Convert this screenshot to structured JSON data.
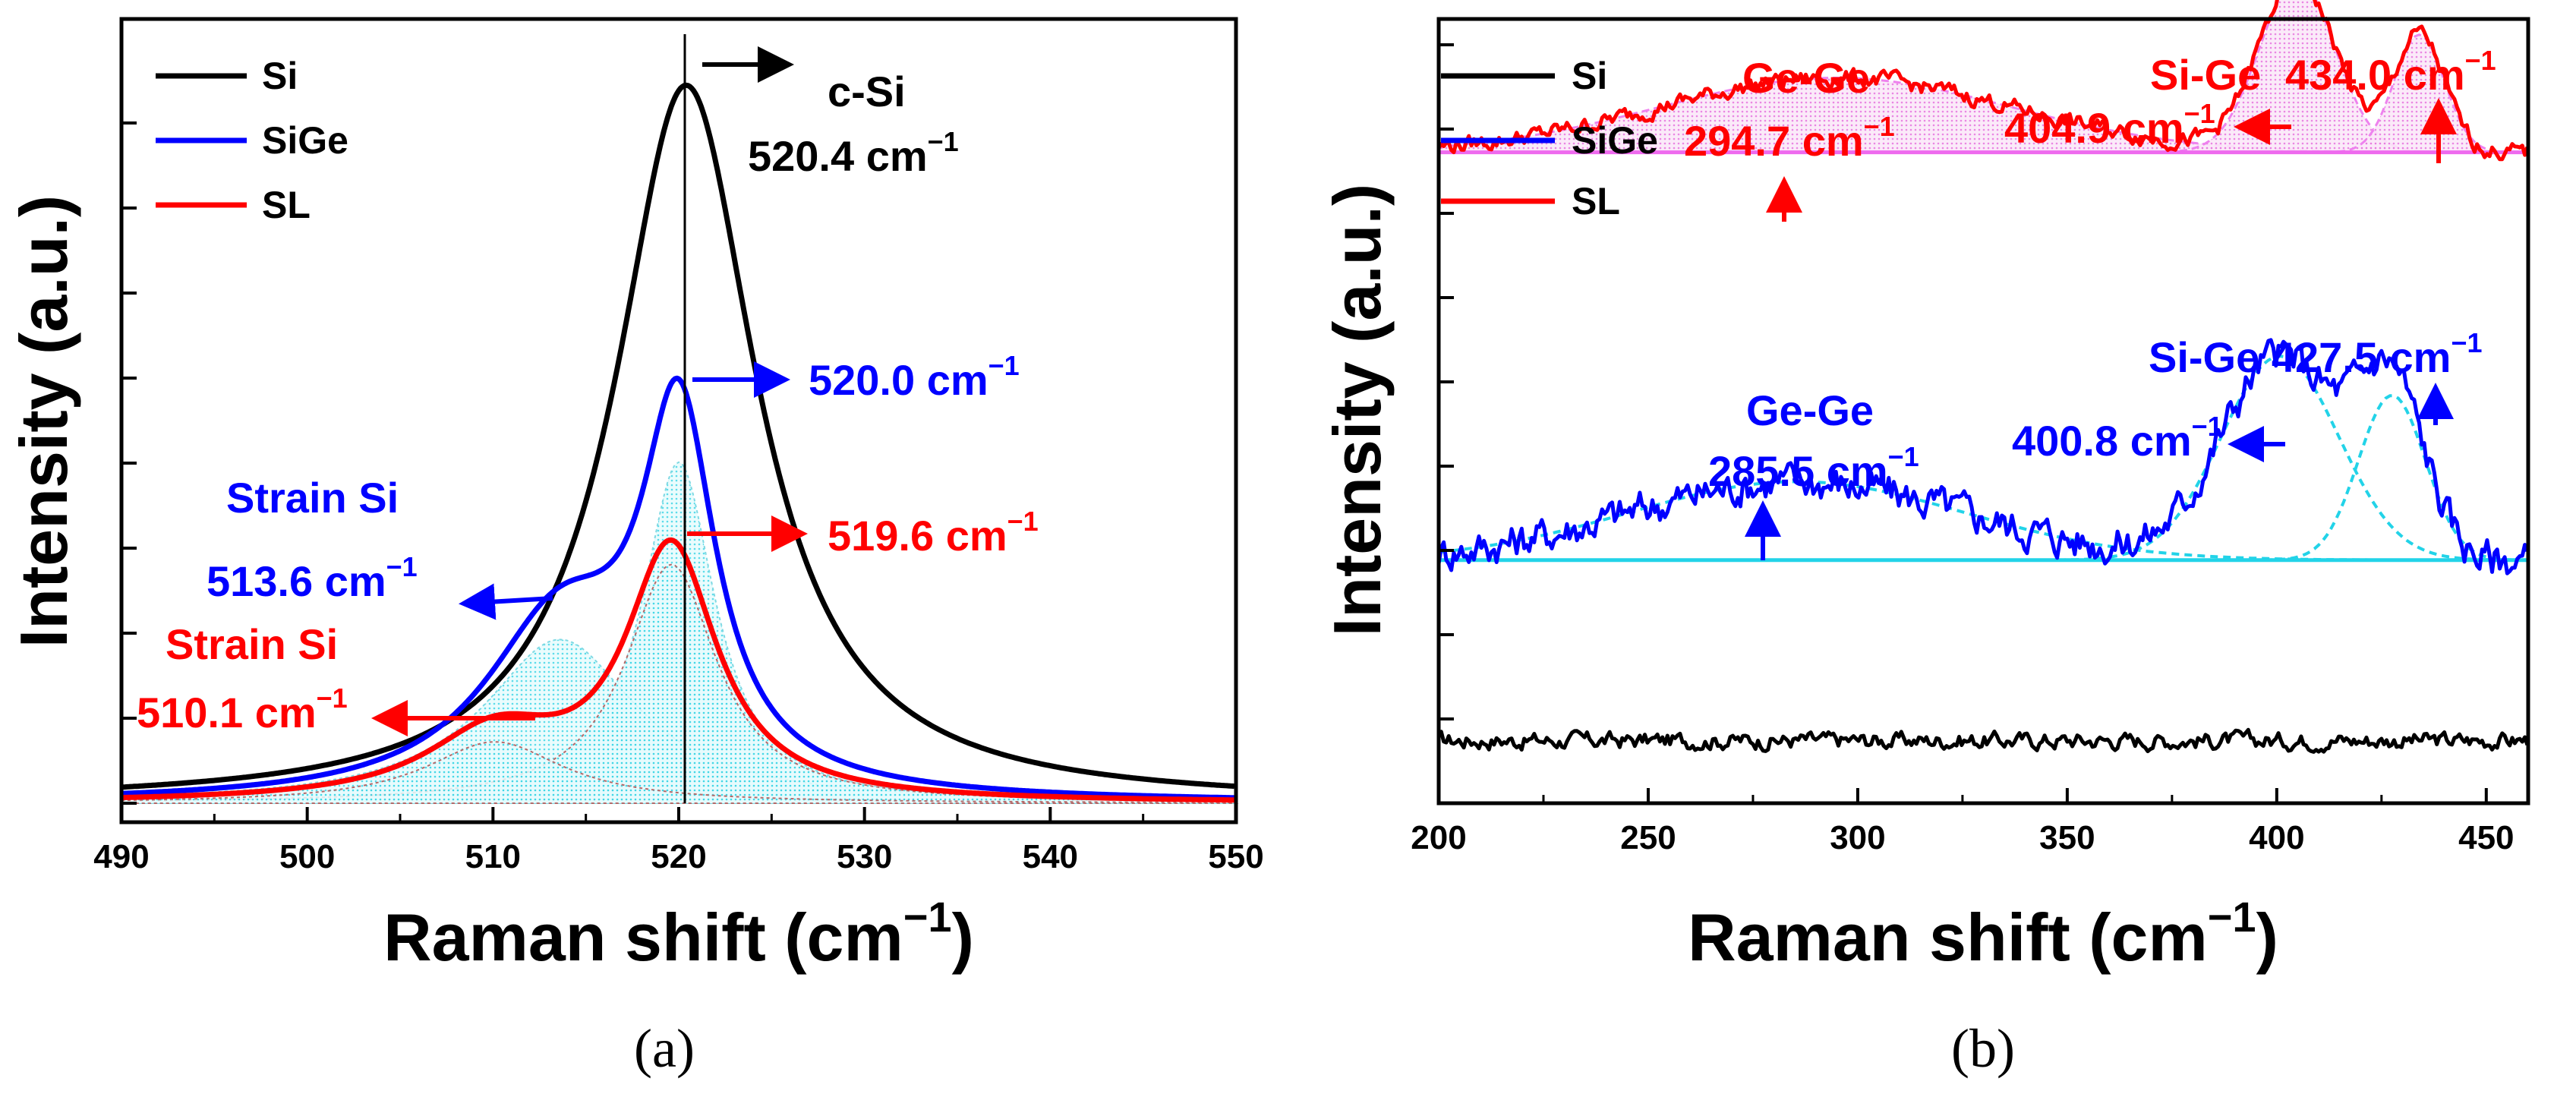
{
  "chart_data": [
    {
      "panel": "(a)",
      "type": "line",
      "xlabel": "Raman shift (cm",
      "xlabel_sup": "−1",
      "xlabel_close": ")",
      "ylabel": "Intensity (a.u.)",
      "xlim": [
        490,
        550
      ],
      "ylim": [
        0,
        1.05
      ],
      "xticks": [
        490,
        500,
        510,
        520,
        530,
        540,
        550
      ],
      "legend": [
        {
          "label": "Si",
          "color": "#000000"
        },
        {
          "label": "SiGe",
          "color": "#0000ff"
        },
        {
          "label": "SL",
          "color": "#ff0000"
        }
      ],
      "series": [
        {
          "name": "Si",
          "color": "#000000",
          "type": "lorentz",
          "peaks": [
            {
              "center": 520.4,
              "height": 1.0,
              "width": 4.6
            }
          ],
          "baseline": 0.0
        },
        {
          "name": "SiGe",
          "color": "#0000ff",
          "type": "lorentz",
          "peaks": [
            {
              "center": 520.0,
              "height": 0.5,
              "width": 2.4
            },
            {
              "center": 513.6,
              "height": 0.24,
              "width": 5.0
            }
          ],
          "baseline": 0.0
        },
        {
          "name": "SL",
          "color": "#ff0000",
          "type": "lorentz",
          "peaks": [
            {
              "center": 519.6,
              "height": 0.35,
              "width": 3.0
            },
            {
              "center": 510.1,
              "height": 0.09,
              "width": 4.5
            }
          ],
          "baseline": 0.0
        }
      ],
      "annotations": [
        {
          "text": "c-Si",
          "color": "#000000"
        },
        {
          "text": "520.4 cm",
          "sup": "−1",
          "color": "#000000"
        },
        {
          "text": "520.0 cm",
          "sup": "−1",
          "color": "#0000ff"
        },
        {
          "text": "Strain Si",
          "color": "#0000ff"
        },
        {
          "text": "513.6 cm",
          "sup": "−1",
          "color": "#0000ff"
        },
        {
          "text": "519.6 cm",
          "sup": "−1",
          "color": "#ff0000"
        },
        {
          "text": "Strain Si",
          "color": "#ff0000"
        },
        {
          "text": "510.1 cm",
          "sup": "−1",
          "color": "#ff0000"
        }
      ]
    },
    {
      "panel": "(b)",
      "type": "line",
      "xlabel": "Raman shift (cm",
      "xlabel_sup": "−1",
      "xlabel_close": ")",
      "ylabel": "Intensity (a.u.)",
      "xlim": [
        200,
        460
      ],
      "ylim": [
        0,
        1.0
      ],
      "xticks": [
        200,
        250,
        300,
        350,
        400,
        450
      ],
      "legend": [
        {
          "label": "Si",
          "color": "#000000"
        },
        {
          "label": "SiGe",
          "color": "#0000ff"
        },
        {
          "label": "SL",
          "color": "#ff0000"
        }
      ],
      "series": [
        {
          "name": "Si",
          "color": "#000000",
          "offset": 0.08,
          "peaks": []
        },
        {
          "name": "SiGe",
          "color": "#0000ff",
          "offset": 0.31,
          "peaks": [
            {
              "center": 285.5,
              "height": 0.1,
              "width": 40
            },
            {
              "center": 400.8,
              "height": 0.26,
              "width": 14
            },
            {
              "center": 427.5,
              "height": 0.21,
              "width": 8
            }
          ]
        },
        {
          "name": "SL",
          "color": "#ff0000",
          "offset": 0.83,
          "peaks": [
            {
              "center": 294.7,
              "height": 0.095,
              "width": 42
            },
            {
              "center": 404.9,
              "height": 0.22,
              "width": 9
            },
            {
              "center": 434.0,
              "height": 0.15,
              "width": 6
            }
          ]
        }
      ],
      "annotations": [
        {
          "text": "Ge-Ge",
          "color": "#ff0000"
        },
        {
          "text": "294.7 cm",
          "sup": "−1",
          "color": "#ff0000"
        },
        {
          "text": "Si-Ge",
          "color": "#ff0000"
        },
        {
          "text": "434.0 cm",
          "sup": "−1",
          "color": "#ff0000"
        },
        {
          "text": "404.9 cm",
          "sup": "−1",
          "color": "#ff0000"
        },
        {
          "text": "Ge-Ge",
          "color": "#0000ff"
        },
        {
          "text": "285.5 cm",
          "sup": "−1",
          "color": "#0000ff"
        },
        {
          "text": "Si-Ge 427.5 cm",
          "sup": "−1",
          "color": "#0000ff"
        },
        {
          "text": "400.8 cm",
          "sup": "−1",
          "color": "#0000ff"
        }
      ]
    }
  ]
}
